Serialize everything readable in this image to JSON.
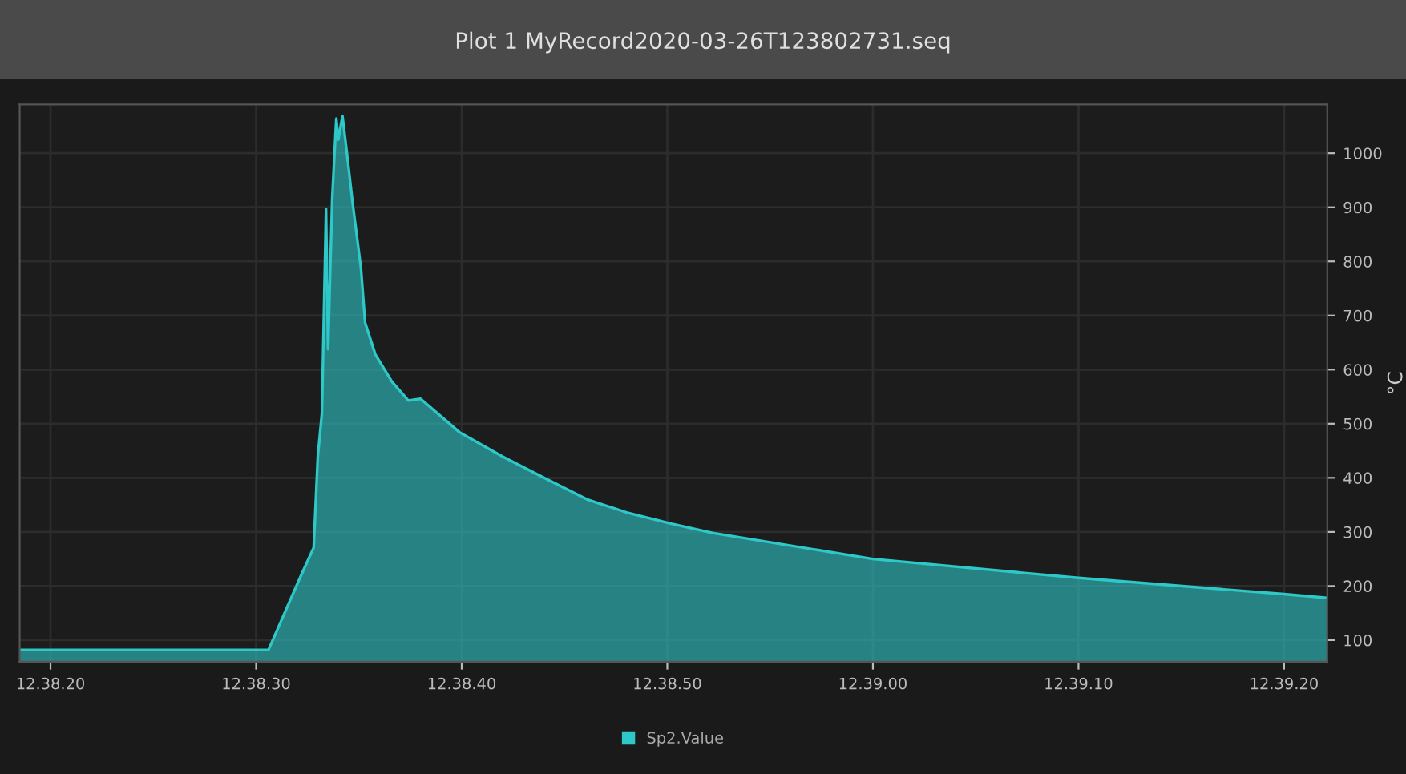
{
  "chart_data": {
    "type": "area",
    "title": "Plot 1 MyRecord2020-03-26T123802731.seq",
    "ylabel": "°C",
    "series": [
      {
        "name": "Sp2.Value",
        "color": "#2ec8c8",
        "x": [
          "2020-03-26T12:38:18.5",
          "2020-03-26T12:38:30.6",
          "2020-03-26T12:38:32.2",
          "2020-03-26T12:38:32.8",
          "2020-03-26T12:38:33.0",
          "2020-03-26T12:38:33.2",
          "2020-03-26T12:38:33.4",
          "2020-03-26T12:38:33.5",
          "2020-03-26T12:38:33.7",
          "2020-03-26T12:38:33.9",
          "2020-03-26T12:38:34.0",
          "2020-03-26T12:38:34.2",
          "2020-03-26T12:38:34.4",
          "2020-03-26T12:38:34.7",
          "2020-03-26T12:38:35.1",
          "2020-03-26T12:38:35.3",
          "2020-03-26T12:38:35.8",
          "2020-03-26T12:38:36.6",
          "2020-03-26T12:38:37.4",
          "2020-03-26T12:38:38.0",
          "2020-03-26T12:38:39.9",
          "2020-03-26T12:38:42.0",
          "2020-03-26T12:38:44.0",
          "2020-03-26T12:38:46.1",
          "2020-03-26T12:38:48.1",
          "2020-03-26T12:38:50.2",
          "2020-03-26T12:38:52.2",
          "2020-03-26T12:39:00.0",
          "2020-03-26T12:39:10.0",
          "2020-03-26T12:39:20.0",
          "2020-03-26T12:39:22.1"
        ],
        "values": [
          82,
          82,
          221,
          271,
          439,
          519,
          897,
          638,
          915,
          1064,
          1025,
          1069,
          1005,
          906,
          787,
          687,
          628,
          578,
          543,
          546,
          484,
          439,
          400,
          360,
          335,
          315,
          298,
          250,
          215,
          185,
          178
        ]
      }
    ],
    "xlim": [
      "2020-03-26T12:38:18.5",
      "2020-03-26T12:39:22.1"
    ],
    "xticks": [
      {
        "value": "2020-03-26T12:38:20",
        "label": "12.38.20"
      },
      {
        "value": "2020-03-26T12:38:30",
        "label": "12.38.30"
      },
      {
        "value": "2020-03-26T12:38:40",
        "label": "12.38.40"
      },
      {
        "value": "2020-03-26T12:38:50",
        "label": "12.38.50"
      },
      {
        "value": "2020-03-26T12:39:00",
        "label": "12.39.00"
      },
      {
        "value": "2020-03-26T12:39:10",
        "label": "12.39.10"
      },
      {
        "value": "2020-03-26T12:39:20",
        "label": "12.39.20"
      }
    ],
    "ylim": [
      60,
      1090
    ],
    "yticks": [
      100,
      200,
      300,
      400,
      500,
      600,
      700,
      800,
      900,
      1000
    ],
    "grid": true,
    "legend": "bottom"
  }
}
